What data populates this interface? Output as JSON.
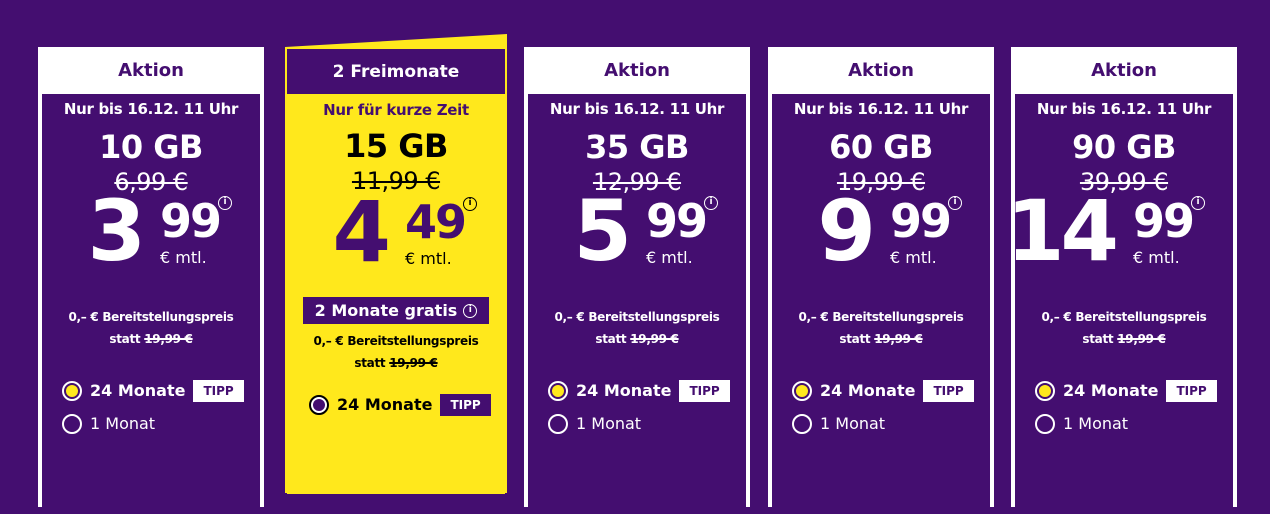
{
  "colors": {
    "background": "#440e70",
    "accent": "#ffe81c",
    "white": "#ffffff"
  },
  "plans": [
    {
      "badge": "Aktion",
      "until": "Nur bis 16.12. 11 Uhr",
      "data": "10 GB",
      "old_price": "6,99 €",
      "price_int": "3",
      "price_dec": "99",
      "unit": "€ mtl.",
      "fee": "0,– € Bereitstellungspreis",
      "fee_statt": "statt",
      "fee_old": "19,99 €",
      "opt1": "24 Monate",
      "tipp": "TIPP",
      "opt2": "1 Monat",
      "selected": "24 Monate"
    },
    {
      "badge": "2 Freimonate",
      "until": "Nur für kurze Zeit",
      "data": "15 GB",
      "old_price": "11,99 €",
      "price_int": "4",
      "price_dec": "49",
      "unit": "€ mtl.",
      "promo": "2 Monate gratis",
      "fee": "0,– € Bereitstellungspreis",
      "fee_statt": "statt",
      "fee_old": "19,99 €",
      "opt1": "24 Monate",
      "tipp": "TIPP",
      "selected": "24 Monate"
    },
    {
      "badge": "Aktion",
      "until": "Nur bis 16.12. 11 Uhr",
      "data": "35 GB",
      "old_price": "12,99 €",
      "price_int": "5",
      "price_dec": "99",
      "unit": "€ mtl.",
      "fee": "0,– € Bereitstellungspreis",
      "fee_statt": "statt",
      "fee_old": "19,99 €",
      "opt1": "24 Monate",
      "tipp": "TIPP",
      "opt2": "1 Monat",
      "selected": "24 Monate"
    },
    {
      "badge": "Aktion",
      "until": "Nur bis 16.12. 11 Uhr",
      "data": "60 GB",
      "old_price": "19,99 €",
      "price_int": "9",
      "price_dec": "99",
      "unit": "€ mtl.",
      "fee": "0,– € Bereitstellungspreis",
      "fee_statt": "statt",
      "fee_old": "19,99 €",
      "opt1": "24 Monate",
      "tipp": "TIPP",
      "opt2": "1 Monat",
      "selected": "24 Monate"
    },
    {
      "badge": "Aktion",
      "until": "Nur bis 16.12. 11 Uhr",
      "data": "90 GB",
      "old_price": "39,99 €",
      "price_int": "14",
      "price_dec": "99",
      "unit": "€ mtl.",
      "fee": "0,– € Bereitstellungspreis",
      "fee_statt": "statt",
      "fee_old": "19,99 €",
      "opt1": "24 Monate",
      "tipp": "TIPP",
      "opt2": "1 Monat",
      "selected": "24 Monate"
    }
  ]
}
